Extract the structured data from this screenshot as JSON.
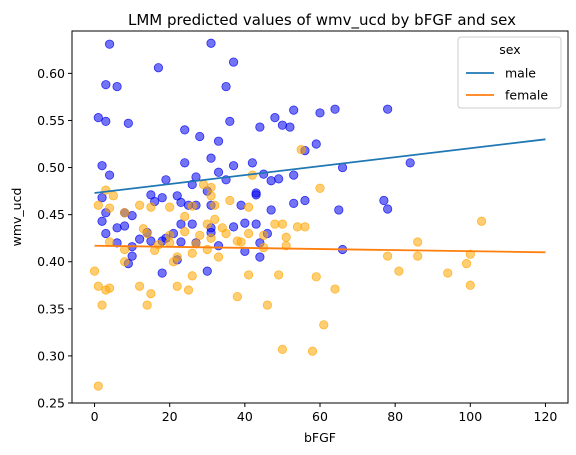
{
  "chart_data": {
    "type": "scatter",
    "title": "LMM predicted values of wmv_ucd by bFGF and sex",
    "xlabel": "bFGF",
    "ylabel": "wmv_ucd",
    "xlim": [
      -6,
      126
    ],
    "ylim": [
      0.25,
      0.645
    ],
    "xticks": [
      0,
      20,
      40,
      60,
      80,
      100,
      120
    ],
    "yticks": [
      0.25,
      0.3,
      0.35,
      0.4,
      0.45,
      0.5,
      0.55,
      0.6
    ],
    "ytick_labels": [
      "0.25",
      "0.30",
      "0.35",
      "0.40",
      "0.45",
      "0.50",
      "0.55",
      "0.60"
    ],
    "grid": false,
    "legend": {
      "title": "sex",
      "placement": "top-right",
      "entries": [
        {
          "label": "male",
          "color": "#1f77b4"
        },
        {
          "label": "female",
          "color": "#ff7f0e"
        }
      ]
    },
    "series": [
      {
        "name": "male",
        "marker_color": "#0000ee",
        "line_color": "#1f77b4",
        "line": {
          "x": [
            0,
            120
          ],
          "y": [
            0.473,
            0.53
          ]
        },
        "points": [
          [
            4,
            0.631
          ],
          [
            31,
            0.632
          ],
          [
            17,
            0.606
          ],
          [
            37,
            0.612
          ],
          [
            3,
            0.588
          ],
          [
            6,
            0.586
          ],
          [
            35,
            0.586
          ],
          [
            1,
            0.553
          ],
          [
            3,
            0.549
          ],
          [
            9,
            0.547
          ],
          [
            36,
            0.549
          ],
          [
            24,
            0.54
          ],
          [
            28,
            0.533
          ],
          [
            33,
            0.528
          ],
          [
            44,
            0.543
          ],
          [
            48,
            0.553
          ],
          [
            50,
            0.545
          ],
          [
            52,
            0.543
          ],
          [
            53,
            0.561
          ],
          [
            60,
            0.558
          ],
          [
            64,
            0.562
          ],
          [
            78,
            0.562
          ],
          [
            59,
            0.525
          ],
          [
            56,
            0.518
          ],
          [
            2,
            0.502
          ],
          [
            4,
            0.492
          ],
          [
            24,
            0.505
          ],
          [
            31,
            0.51
          ],
          [
            37,
            0.502
          ],
          [
            42,
            0.505
          ],
          [
            45,
            0.493
          ],
          [
            19,
            0.487
          ],
          [
            27,
            0.49
          ],
          [
            35,
            0.487
          ],
          [
            43,
            0.471
          ],
          [
            43,
            0.473
          ],
          [
            47,
            0.486
          ],
          [
            49,
            0.488
          ],
          [
            53,
            0.492
          ],
          [
            66,
            0.5
          ],
          [
            84,
            0.505
          ],
          [
            15,
            0.471
          ],
          [
            16,
            0.464
          ],
          [
            18,
            0.468
          ],
          [
            22,
            0.47
          ],
          [
            23,
            0.463
          ],
          [
            26,
            0.482
          ],
          [
            30,
            0.475
          ],
          [
            33,
            0.495
          ],
          [
            39,
            0.46
          ],
          [
            53,
            0.462
          ],
          [
            56,
            0.465
          ],
          [
            2,
            0.468
          ],
          [
            3,
            0.452
          ],
          [
            8,
            0.452
          ],
          [
            10,
            0.449
          ],
          [
            25,
            0.46
          ],
          [
            27,
            0.46
          ],
          [
            31,
            0.46
          ],
          [
            47,
            0.455
          ],
          [
            65,
            0.455
          ],
          [
            77,
            0.465
          ],
          [
            78,
            0.456
          ],
          [
            2,
            0.443
          ],
          [
            14,
            0.431
          ],
          [
            19,
            0.425
          ],
          [
            21,
            0.43
          ],
          [
            23,
            0.44
          ],
          [
            26,
            0.44
          ],
          [
            31,
            0.436
          ],
          [
            31,
            0.431
          ],
          [
            37,
            0.437
          ],
          [
            40,
            0.441
          ],
          [
            43,
            0.44
          ],
          [
            46,
            0.43
          ],
          [
            3,
            0.43
          ],
          [
            6,
            0.42
          ],
          [
            10,
            0.416
          ],
          [
            15,
            0.422
          ],
          [
            18,
            0.422
          ],
          [
            23,
            0.421
          ],
          [
            27,
            0.42
          ],
          [
            33,
            0.417
          ],
          [
            40,
            0.411
          ],
          [
            44,
            0.405
          ],
          [
            44,
            0.42
          ],
          [
            66,
            0.413
          ],
          [
            18,
            0.388
          ],
          [
            22,
            0.402
          ],
          [
            30,
            0.39
          ],
          [
            9,
            0.398
          ],
          [
            10,
            0.406
          ],
          [
            6,
            0.436
          ],
          [
            8,
            0.438
          ],
          [
            12,
            0.424
          ]
        ]
      },
      {
        "name": "female",
        "marker_color": "#ffa500",
        "line_color": "#ff7f0e",
        "line": {
          "x": [
            0,
            120
          ],
          "y": [
            0.417,
            0.41
          ]
        },
        "points": [
          [
            55,
            0.519
          ],
          [
            31,
            0.479
          ],
          [
            29,
            0.482
          ],
          [
            42,
            0.492
          ],
          [
            60,
            0.478
          ],
          [
            31,
            0.47
          ],
          [
            5,
            0.47
          ],
          [
            3,
            0.476
          ],
          [
            4,
            0.457
          ],
          [
            12,
            0.46
          ],
          [
            15,
            0.458
          ],
          [
            20,
            0.458
          ],
          [
            26,
            0.459
          ],
          [
            32,
            0.46
          ],
          [
            36,
            0.465
          ],
          [
            41,
            0.458
          ],
          [
            1,
            0.46
          ],
          [
            8,
            0.452
          ],
          [
            24,
            0.448
          ],
          [
            30,
            0.44
          ],
          [
            32,
            0.445
          ],
          [
            35,
            0.43
          ],
          [
            48,
            0.44
          ],
          [
            50,
            0.44
          ],
          [
            51,
            0.426
          ],
          [
            54,
            0.437
          ],
          [
            56,
            0.437
          ],
          [
            103,
            0.443
          ],
          [
            13,
            0.435
          ],
          [
            14,
            0.43
          ],
          [
            20,
            0.428
          ],
          [
            24,
            0.432
          ],
          [
            28,
            0.428
          ],
          [
            31,
            0.425
          ],
          [
            34,
            0.436
          ],
          [
            38,
            0.422
          ],
          [
            41,
            0.43
          ],
          [
            45,
            0.428
          ],
          [
            17,
            0.418
          ],
          [
            20,
            0.42
          ],
          [
            27,
            0.419
          ],
          [
            30,
            0.413
          ],
          [
            39,
            0.421
          ],
          [
            45,
            0.415
          ],
          [
            51,
            0.417
          ],
          [
            86,
            0.421
          ],
          [
            100,
            0.408
          ],
          [
            78,
            0.406
          ],
          [
            86,
            0.406
          ],
          [
            4,
            0.421
          ],
          [
            8,
            0.413
          ],
          [
            16,
            0.412
          ],
          [
            22,
            0.405
          ],
          [
            26,
            0.409
          ],
          [
            33,
            0.405
          ],
          [
            8,
            0.4
          ],
          [
            0,
            0.39
          ],
          [
            21,
            0.4
          ],
          [
            22,
            0.374
          ],
          [
            25,
            0.37
          ],
          [
            15,
            0.366
          ],
          [
            12,
            0.374
          ],
          [
            1,
            0.374
          ],
          [
            3,
            0.37
          ],
          [
            4,
            0.372
          ],
          [
            26,
            0.385
          ],
          [
            41,
            0.386
          ],
          [
            49,
            0.386
          ],
          [
            59,
            0.384
          ],
          [
            81,
            0.39
          ],
          [
            94,
            0.388
          ],
          [
            99,
            0.398
          ],
          [
            100,
            0.375
          ],
          [
            2,
            0.354
          ],
          [
            14,
            0.354
          ],
          [
            38,
            0.363
          ],
          [
            46,
            0.354
          ],
          [
            64,
            0.371
          ],
          [
            61,
            0.333
          ],
          [
            50,
            0.307
          ],
          [
            58,
            0.305
          ],
          [
            1,
            0.268
          ]
        ]
      }
    ]
  }
}
